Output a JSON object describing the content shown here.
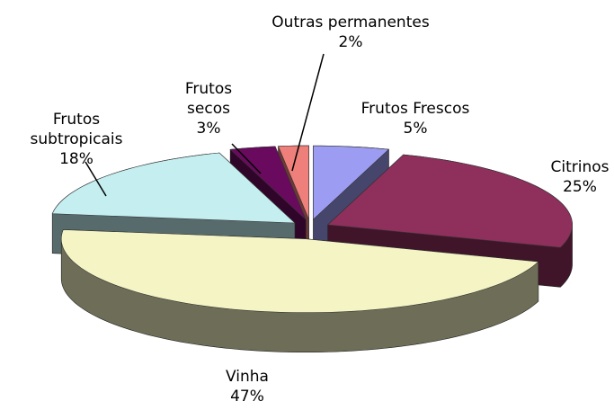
{
  "chart_data": {
    "type": "pie3d",
    "categories": [
      "Frutos Frescos",
      "Citrinos",
      "Vinha",
      "Frutos subtropicais",
      "Frutos secos",
      "Outras permanentes"
    ],
    "values": [
      5,
      25,
      47,
      18,
      3,
      2
    ],
    "value_labels": [
      "5%",
      "25%",
      "47%",
      "18%",
      "3%",
      "2%"
    ],
    "colors": [
      "#9c9cf2",
      "#8e2f5c",
      "#f4f4c4",
      "#c4eef0",
      "#6a0a5e",
      "#ef7f7a"
    ]
  }
}
